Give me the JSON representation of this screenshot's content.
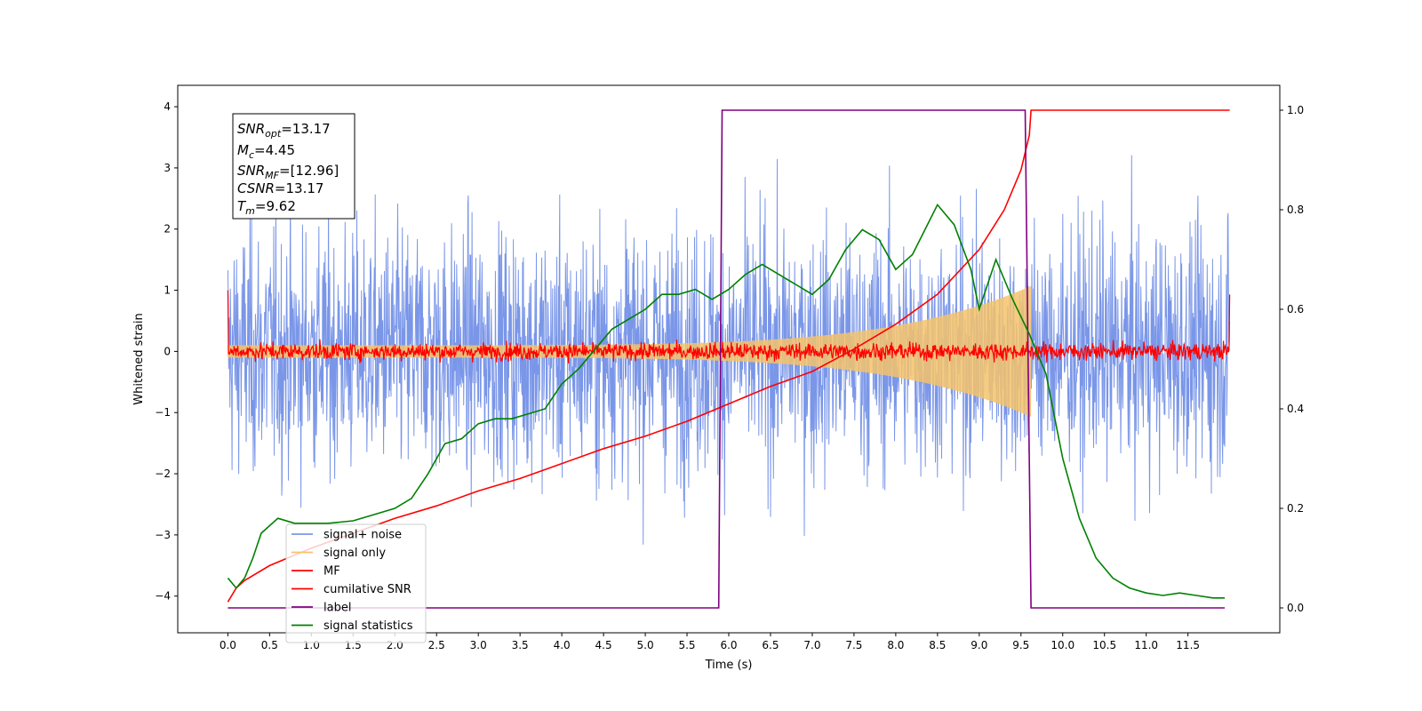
{
  "chart_data": {
    "type": "line",
    "xlabel": "Time (s)",
    "ylabel": "Whitened strain",
    "xlim": [
      -0.6,
      12.6
    ],
    "ylim": [
      -4.6,
      4.35
    ],
    "y2lim": [
      -0.05,
      1.05
    ],
    "x_ticks": [
      "0.0",
      "0.5",
      "1.0",
      "1.5",
      "2.0",
      "2.5",
      "3.0",
      "3.5",
      "4.0",
      "4.5",
      "5.0",
      "5.5",
      "6.0",
      "6.5",
      "7.0",
      "7.5",
      "8.0",
      "8.5",
      "9.0",
      "9.5",
      "10.0",
      "10.5",
      "11.0",
      "11.5"
    ],
    "y_ticks": [
      "−4",
      "−3",
      "−2",
      "−1",
      "0",
      "1",
      "2",
      "3",
      "4"
    ],
    "y2_ticks": [
      "0.0",
      "0.2",
      "0.4",
      "0.6",
      "0.8",
      "1.0"
    ],
    "grid": false,
    "legend_position": "lower-left",
    "annotation": {
      "snr_opt": {
        "base": "SNR",
        "sub": "opt",
        "value": "=13.17"
      },
      "mc": {
        "base": "M",
        "sub": "c",
        "value": "=4.45"
      },
      "snr_mf": {
        "base": "SNR",
        "sub": "MF",
        "value": "=[12.96]"
      },
      "csnr": {
        "base": "CSNR",
        "value": "=13.17"
      },
      "tm": {
        "base": "T",
        "sub": "m",
        "value": "=9.62"
      }
    },
    "series": [
      {
        "name": "signal+ noise",
        "color": "#7a96e8",
        "axis": "left",
        "t_start": 0.0,
        "t_end": 12.0,
        "noise_sigma": 1.0,
        "envelope": "approx ±2.5 to ±4.0"
      },
      {
        "name": "signal only",
        "color": "#f5c36b",
        "axis": "left",
        "t_start": 0.0,
        "t_end": 9.62,
        "amplitude_start": 0.1,
        "amplitude_end": 1.07
      },
      {
        "name": "MF",
        "color": "#ff0000",
        "axis": "left",
        "t_start": 0.0,
        "t_end": 12.0,
        "amplitude": 0.2,
        "edge_value": 1.0
      },
      {
        "name": "cumilative SNR",
        "color": "#ff0000",
        "axis": "right",
        "x": [
          0.0,
          0.1,
          0.2,
          0.5,
          1.0,
          1.5,
          2.0,
          2.5,
          3.0,
          3.5,
          4.0,
          4.5,
          5.0,
          5.5,
          6.0,
          6.5,
          7.0,
          7.5,
          8.0,
          8.5,
          9.0,
          9.3,
          9.5,
          9.6,
          9.62,
          12.0
        ],
        "y": [
          0.012,
          0.04,
          0.055,
          0.085,
          0.12,
          0.15,
          0.18,
          0.205,
          0.235,
          0.26,
          0.29,
          0.32,
          0.345,
          0.375,
          0.41,
          0.445,
          0.475,
          0.52,
          0.57,
          0.63,
          0.72,
          0.8,
          0.88,
          0.95,
          1.0,
          1.0
        ]
      },
      {
        "name": "label",
        "color": "#800080",
        "axis": "right",
        "x": [
          0.0,
          5.88,
          5.92,
          9.55,
          9.62,
          11.94
        ],
        "y": [
          0.0,
          0.0,
          1.0,
          1.0,
          0.0,
          0.0
        ]
      },
      {
        "name": "signal statistics",
        "color": "#008000",
        "axis": "right",
        "x": [
          0.0,
          0.1,
          0.2,
          0.3,
          0.4,
          0.6,
          0.8,
          1.0,
          1.2,
          1.5,
          1.8,
          2.0,
          2.2,
          2.4,
          2.6,
          2.8,
          3.0,
          3.2,
          3.4,
          3.6,
          3.8,
          4.0,
          4.2,
          4.4,
          4.6,
          4.8,
          5.0,
          5.2,
          5.4,
          5.6,
          5.8,
          6.0,
          6.2,
          6.4,
          6.6,
          6.8,
          7.0,
          7.2,
          7.4,
          7.6,
          7.8,
          8.0,
          8.2,
          8.5,
          8.7,
          8.9,
          9.0,
          9.2,
          9.4,
          9.6,
          9.8,
          10.0,
          10.2,
          10.4,
          10.6,
          10.8,
          11.0,
          11.2,
          11.4,
          11.6,
          11.8,
          11.94
        ],
        "y": [
          0.06,
          0.04,
          0.06,
          0.1,
          0.15,
          0.18,
          0.17,
          0.17,
          0.17,
          0.175,
          0.19,
          0.2,
          0.22,
          0.27,
          0.33,
          0.34,
          0.37,
          0.38,
          0.38,
          0.39,
          0.4,
          0.45,
          0.48,
          0.52,
          0.56,
          0.58,
          0.6,
          0.63,
          0.63,
          0.64,
          0.62,
          0.64,
          0.67,
          0.69,
          0.67,
          0.65,
          0.63,
          0.66,
          0.72,
          0.76,
          0.74,
          0.68,
          0.71,
          0.81,
          0.77,
          0.68,
          0.6,
          0.7,
          0.62,
          0.55,
          0.47,
          0.3,
          0.18,
          0.1,
          0.06,
          0.04,
          0.03,
          0.025,
          0.03,
          0.025,
          0.02,
          0.02
        ]
      }
    ]
  }
}
